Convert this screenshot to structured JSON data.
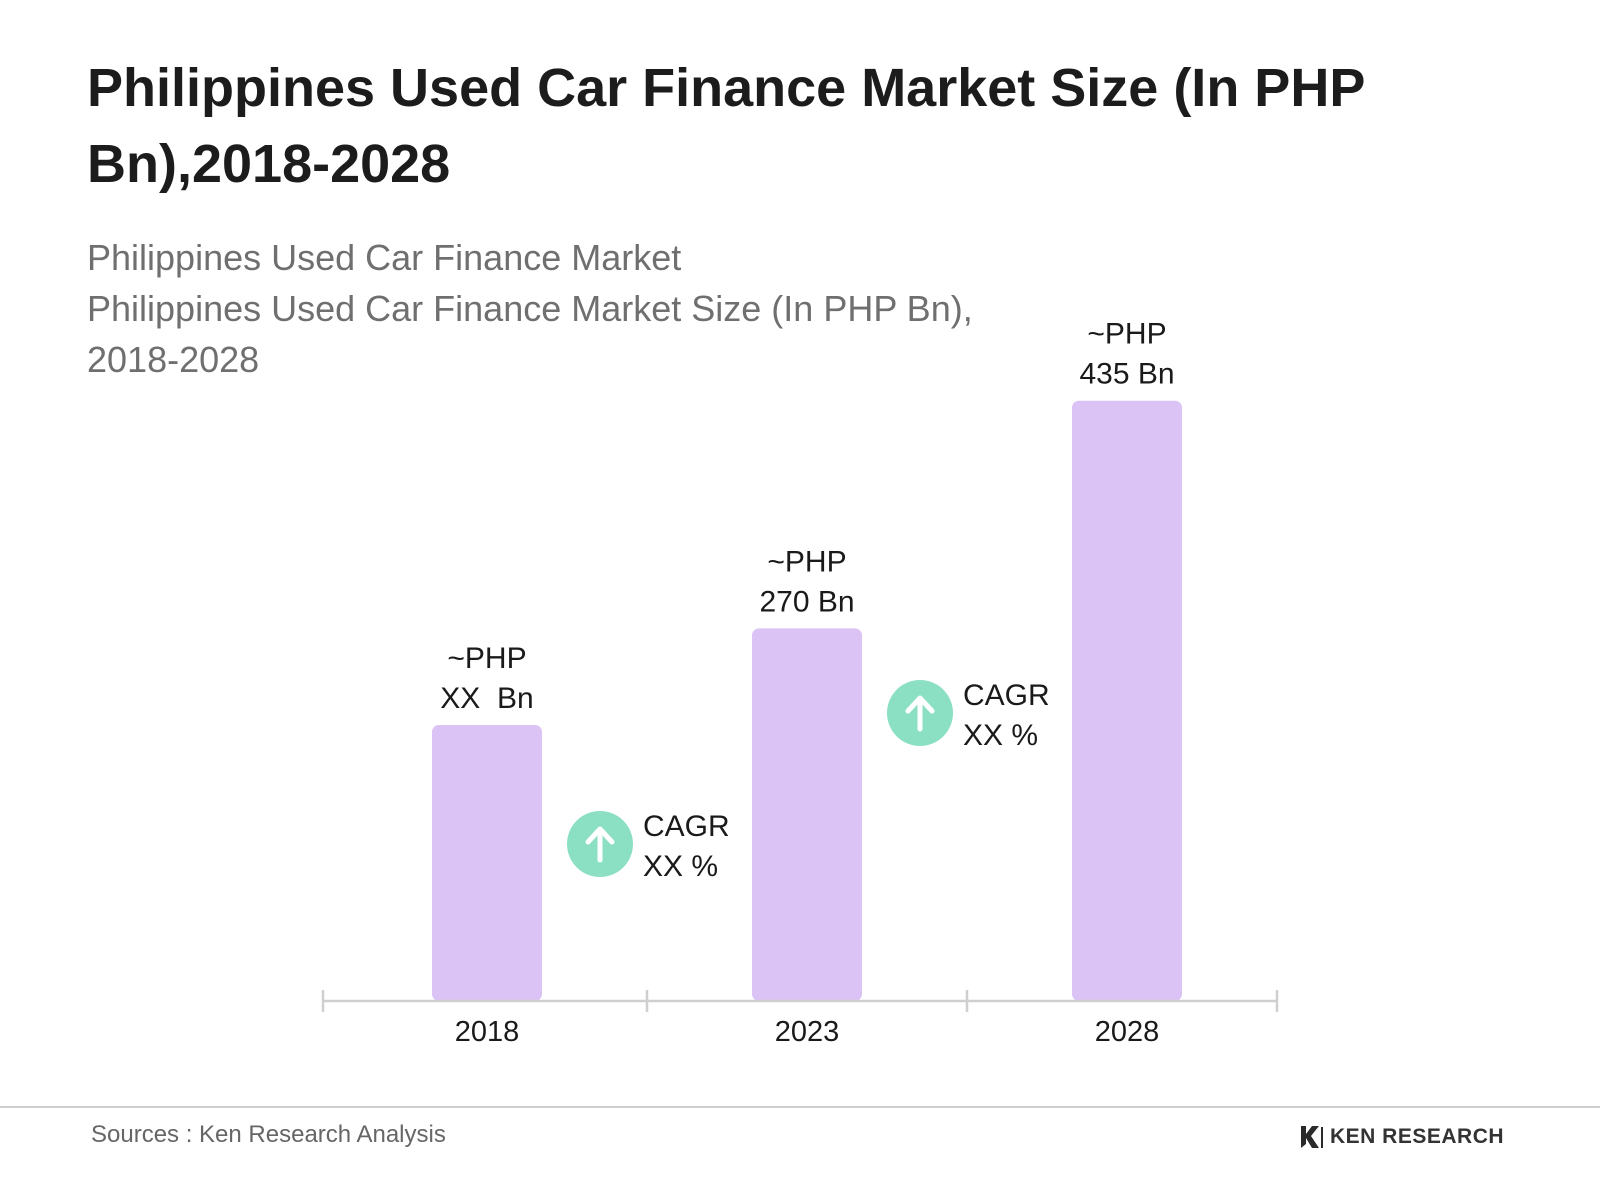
{
  "title": "Philippines Used Car Finance Market Size (In PHP Bn),2018-2028",
  "subtitle": {
    "line1": "Philippines Used Car Finance Market",
    "line2": "Philippines Used Car Finance Market Size (In PHP Bn),",
    "line3": "2018-2028"
  },
  "colors": {
    "bar": "#dcc3f6",
    "cagr_circle": "#8be0c3",
    "axis": "#cfcfcf"
  },
  "chart_data": {
    "type": "bar",
    "categories": [
      "2018",
      "2023",
      "2028"
    ],
    "values": [
      200,
      270,
      435
    ],
    "data_labels": [
      [
        "~PHP",
        "XX  Bn"
      ],
      [
        "~PHP",
        "270 Bn"
      ],
      [
        "~PHP",
        "435 Bn"
      ]
    ],
    "annotations": [
      {
        "icon": "arrow-up-icon",
        "line1": "CAGR",
        "line2": "XX %",
        "between": [
          "2018",
          "2023"
        ]
      },
      {
        "icon": "arrow-up-icon",
        "line1": "CAGR",
        "line2": "XX %",
        "between": [
          "2023",
          "2028"
        ]
      }
    ],
    "ylim": [
      0,
      450
    ],
    "grid": false
  },
  "footer": {
    "source": "Sources : Ken Research Analysis",
    "brand": "KEN RESEARCH",
    "brand_icon": "ken-research-logo-icon"
  }
}
